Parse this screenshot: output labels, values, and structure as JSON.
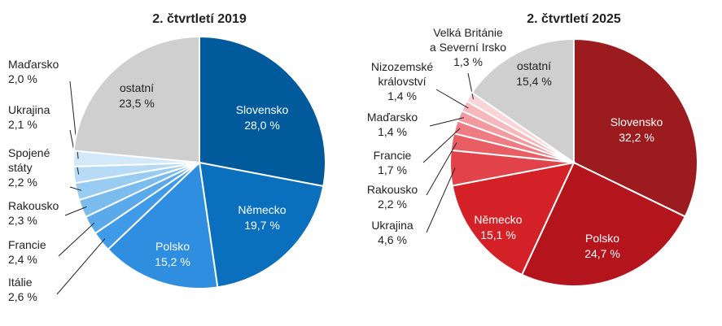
{
  "chart_data": [
    {
      "type": "pie",
      "title": "2. čtvrtletí 2019",
      "slices": [
        {
          "name": "Slovensko",
          "value": 28.0,
          "value_label": "28,0 %",
          "color": "#005a9c",
          "label_lines": [
            "Slovensko",
            "28,0 %"
          ],
          "inside": true
        },
        {
          "name": "Německo",
          "value": 19.7,
          "value_label": "19,7 %",
          "color": "#0a6fbd",
          "label_lines": [
            "Německo",
            "19,7 %"
          ],
          "inside": true
        },
        {
          "name": "Polsko",
          "value": 15.2,
          "value_label": "15,2 %",
          "color": "#2f8ee0",
          "label_lines": [
            "Polsko",
            "15,2 %"
          ],
          "inside": true
        },
        {
          "name": "Itálie",
          "value": 2.6,
          "value_label": "2,6 %",
          "color": "#3f9be8",
          "label_lines": [
            "Itálie",
            "2,6 %"
          ],
          "inside": false
        },
        {
          "name": "Francie",
          "value": 2.4,
          "value_label": "2,4 %",
          "color": "#5aaaeb",
          "label_lines": [
            "Francie",
            "2,4 %"
          ],
          "inside": false
        },
        {
          "name": "Rakousko",
          "value": 2.3,
          "value_label": "2,3 %",
          "color": "#7bbcef",
          "label_lines": [
            "Rakousko",
            "2,3 %"
          ],
          "inside": false
        },
        {
          "name": "Spojené státy",
          "value": 2.2,
          "value_label": "2,2 %",
          "color": "#99ccf3",
          "label_lines": [
            "Spojené",
            "státy",
            "2,2 %"
          ],
          "inside": false
        },
        {
          "name": "Ukrajina",
          "value": 2.1,
          "value_label": "2,1 %",
          "color": "#b7dbf7",
          "label_lines": [
            "Ukrajina",
            "2,1 %"
          ],
          "inside": false
        },
        {
          "name": "Maďarsko",
          "value": 2.0,
          "value_label": "2,0 %",
          "color": "#d3e9fa",
          "label_lines": [
            "Maďarsko",
            "2,0 %"
          ],
          "inside": false
        },
        {
          "name": "ostatní",
          "value": 23.5,
          "value_label": "23,5 %",
          "color": "#cfcfcf",
          "label_lines": [
            "ostatní",
            "23,5 %"
          ],
          "inside": true
        }
      ]
    },
    {
      "type": "pie",
      "title": "2. čtvrtletí 2025",
      "slices": [
        {
          "name": "Slovensko",
          "value": 32.2,
          "value_label": "32,2 %",
          "color": "#9b1b1f",
          "label_lines": [
            "Slovensko",
            "32,2 %"
          ],
          "inside": true
        },
        {
          "name": "Polsko",
          "value": 24.7,
          "value_label": "24,7 %",
          "color": "#b4141c",
          "label_lines": [
            "Polsko",
            "24,7 %"
          ],
          "inside": true
        },
        {
          "name": "Německo",
          "value": 15.1,
          "value_label": "15,1 %",
          "color": "#d42027",
          "label_lines": [
            "Německo",
            "15,1 %"
          ],
          "inside": true
        },
        {
          "name": "Ukrajina",
          "value": 4.6,
          "value_label": "4,6 %",
          "color": "#e2434a",
          "label_lines": [
            "Ukrajina",
            "4,6 %"
          ],
          "inside": false
        },
        {
          "name": "Rakousko",
          "value": 2.2,
          "value_label": "2,2 %",
          "color": "#e85e64",
          "label_lines": [
            "Rakousko",
            "2,2 %"
          ],
          "inside": false
        },
        {
          "name": "Francie",
          "value": 1.7,
          "value_label": "1,7 %",
          "color": "#ee7c82",
          "label_lines": [
            "Francie",
            "1,7 %"
          ],
          "inside": false
        },
        {
          "name": "Maďarsko",
          "value": 1.4,
          "value_label": "1,4 %",
          "color": "#f29aa0",
          "label_lines": [
            "Maďarsko",
            "1,4 %"
          ],
          "inside": false
        },
        {
          "name": "Nizozemské království",
          "value": 1.4,
          "value_label": "1,4 %",
          "color": "#f6b8bc",
          "label_lines": [
            "Nizozemské",
            "království",
            "1,4 %"
          ],
          "inside": false
        },
        {
          "name": "Velká Británie a Severní Irsko",
          "value": 1.3,
          "value_label": "1,3 %",
          "color": "#fad5d8",
          "label_lines": [
            "Velká Británie",
            "a Severní Irsko",
            "1,3 %"
          ],
          "inside": false
        },
        {
          "name": "ostatní",
          "value": 15.4,
          "value_label": "15,4 %",
          "color": "#cfcfcf",
          "label_lines": [
            "ostatní",
            "15,4 %"
          ],
          "inside": true
        }
      ]
    }
  ]
}
